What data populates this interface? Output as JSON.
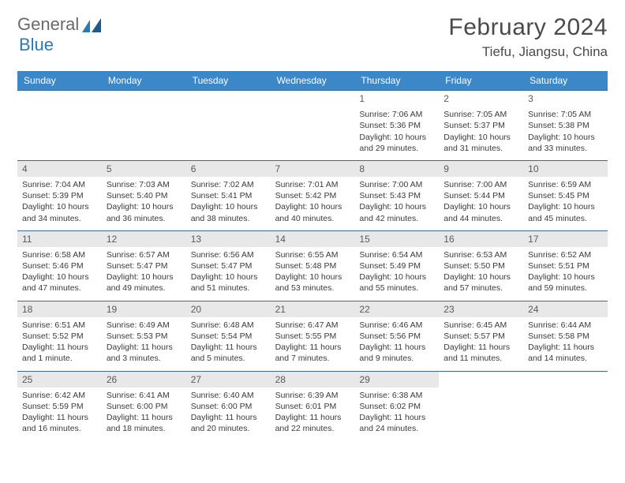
{
  "logo": {
    "word1": "General",
    "word2": "Blue"
  },
  "title": "February 2024",
  "location": "Tiefu, Jiangsu, China",
  "header_bg": "#3b87c8",
  "border_color": "#3b6a9a",
  "daynum_bg": "#e8e8e8",
  "weekdays": [
    "Sunday",
    "Monday",
    "Tuesday",
    "Wednesday",
    "Thursday",
    "Friday",
    "Saturday"
  ],
  "days": [
    null,
    null,
    null,
    null,
    {
      "n": "1",
      "sr": "Sunrise: 7:06 AM",
      "ss": "Sunset: 5:36 PM",
      "dl": "Daylight: 10 hours and 29 minutes."
    },
    {
      "n": "2",
      "sr": "Sunrise: 7:05 AM",
      "ss": "Sunset: 5:37 PM",
      "dl": "Daylight: 10 hours and 31 minutes."
    },
    {
      "n": "3",
      "sr": "Sunrise: 7:05 AM",
      "ss": "Sunset: 5:38 PM",
      "dl": "Daylight: 10 hours and 33 minutes."
    },
    {
      "n": "4",
      "sr": "Sunrise: 7:04 AM",
      "ss": "Sunset: 5:39 PM",
      "dl": "Daylight: 10 hours and 34 minutes."
    },
    {
      "n": "5",
      "sr": "Sunrise: 7:03 AM",
      "ss": "Sunset: 5:40 PM",
      "dl": "Daylight: 10 hours and 36 minutes."
    },
    {
      "n": "6",
      "sr": "Sunrise: 7:02 AM",
      "ss": "Sunset: 5:41 PM",
      "dl": "Daylight: 10 hours and 38 minutes."
    },
    {
      "n": "7",
      "sr": "Sunrise: 7:01 AM",
      "ss": "Sunset: 5:42 PM",
      "dl": "Daylight: 10 hours and 40 minutes."
    },
    {
      "n": "8",
      "sr": "Sunrise: 7:00 AM",
      "ss": "Sunset: 5:43 PM",
      "dl": "Daylight: 10 hours and 42 minutes."
    },
    {
      "n": "9",
      "sr": "Sunrise: 7:00 AM",
      "ss": "Sunset: 5:44 PM",
      "dl": "Daylight: 10 hours and 44 minutes."
    },
    {
      "n": "10",
      "sr": "Sunrise: 6:59 AM",
      "ss": "Sunset: 5:45 PM",
      "dl": "Daylight: 10 hours and 45 minutes."
    },
    {
      "n": "11",
      "sr": "Sunrise: 6:58 AM",
      "ss": "Sunset: 5:46 PM",
      "dl": "Daylight: 10 hours and 47 minutes."
    },
    {
      "n": "12",
      "sr": "Sunrise: 6:57 AM",
      "ss": "Sunset: 5:47 PM",
      "dl": "Daylight: 10 hours and 49 minutes."
    },
    {
      "n": "13",
      "sr": "Sunrise: 6:56 AM",
      "ss": "Sunset: 5:47 PM",
      "dl": "Daylight: 10 hours and 51 minutes."
    },
    {
      "n": "14",
      "sr": "Sunrise: 6:55 AM",
      "ss": "Sunset: 5:48 PM",
      "dl": "Daylight: 10 hours and 53 minutes."
    },
    {
      "n": "15",
      "sr": "Sunrise: 6:54 AM",
      "ss": "Sunset: 5:49 PM",
      "dl": "Daylight: 10 hours and 55 minutes."
    },
    {
      "n": "16",
      "sr": "Sunrise: 6:53 AM",
      "ss": "Sunset: 5:50 PM",
      "dl": "Daylight: 10 hours and 57 minutes."
    },
    {
      "n": "17",
      "sr": "Sunrise: 6:52 AM",
      "ss": "Sunset: 5:51 PM",
      "dl": "Daylight: 10 hours and 59 minutes."
    },
    {
      "n": "18",
      "sr": "Sunrise: 6:51 AM",
      "ss": "Sunset: 5:52 PM",
      "dl": "Daylight: 11 hours and 1 minute."
    },
    {
      "n": "19",
      "sr": "Sunrise: 6:49 AM",
      "ss": "Sunset: 5:53 PM",
      "dl": "Daylight: 11 hours and 3 minutes."
    },
    {
      "n": "20",
      "sr": "Sunrise: 6:48 AM",
      "ss": "Sunset: 5:54 PM",
      "dl": "Daylight: 11 hours and 5 minutes."
    },
    {
      "n": "21",
      "sr": "Sunrise: 6:47 AM",
      "ss": "Sunset: 5:55 PM",
      "dl": "Daylight: 11 hours and 7 minutes."
    },
    {
      "n": "22",
      "sr": "Sunrise: 6:46 AM",
      "ss": "Sunset: 5:56 PM",
      "dl": "Daylight: 11 hours and 9 minutes."
    },
    {
      "n": "23",
      "sr": "Sunrise: 6:45 AM",
      "ss": "Sunset: 5:57 PM",
      "dl": "Daylight: 11 hours and 11 minutes."
    },
    {
      "n": "24",
      "sr": "Sunrise: 6:44 AM",
      "ss": "Sunset: 5:58 PM",
      "dl": "Daylight: 11 hours and 14 minutes."
    },
    {
      "n": "25",
      "sr": "Sunrise: 6:42 AM",
      "ss": "Sunset: 5:59 PM",
      "dl": "Daylight: 11 hours and 16 minutes."
    },
    {
      "n": "26",
      "sr": "Sunrise: 6:41 AM",
      "ss": "Sunset: 6:00 PM",
      "dl": "Daylight: 11 hours and 18 minutes."
    },
    {
      "n": "27",
      "sr": "Sunrise: 6:40 AM",
      "ss": "Sunset: 6:00 PM",
      "dl": "Daylight: 11 hours and 20 minutes."
    },
    {
      "n": "28",
      "sr": "Sunrise: 6:39 AM",
      "ss": "Sunset: 6:01 PM",
      "dl": "Daylight: 11 hours and 22 minutes."
    },
    {
      "n": "29",
      "sr": "Sunrise: 6:38 AM",
      "ss": "Sunset: 6:02 PM",
      "dl": "Daylight: 11 hours and 24 minutes."
    },
    null,
    null
  ]
}
